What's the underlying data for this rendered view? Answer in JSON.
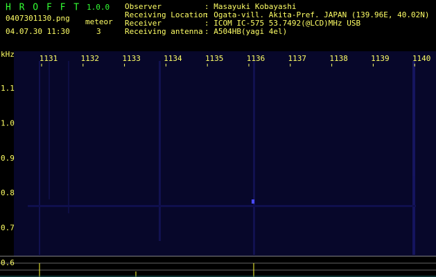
{
  "header": {
    "app_name": "H R O F F T",
    "version": "1.0.0",
    "filename": "0407301130.png",
    "datetime": "04.07.30 11:30",
    "meteor_label": "meteor",
    "meteor_count": "3"
  },
  "info": [
    {
      "label": "Observer",
      "value": ": Masayuki Kobayashi"
    },
    {
      "label": "Receiving Location",
      "value": ": Ogata-vill. Akita-Pref. JAPAN (139.96E, 40.02N)"
    },
    {
      "label": "Receiver",
      "value": ": ICOM IC-575 53.7492(@LCD)MHz USB"
    },
    {
      "label": "Receiving antenna",
      "value": ": A504HB(yagi 4el)"
    }
  ],
  "spectrogram": {
    "unit": "kHz",
    "freq_labels": [
      "1.1",
      "1.0",
      "0.9",
      "0.8",
      "0.7",
      "0.6"
    ],
    "time_labels": [
      "1131",
      "1132",
      "1133",
      "1134",
      "1135",
      "1136",
      "1137",
      "1138",
      "1139",
      "1140"
    ]
  }
}
